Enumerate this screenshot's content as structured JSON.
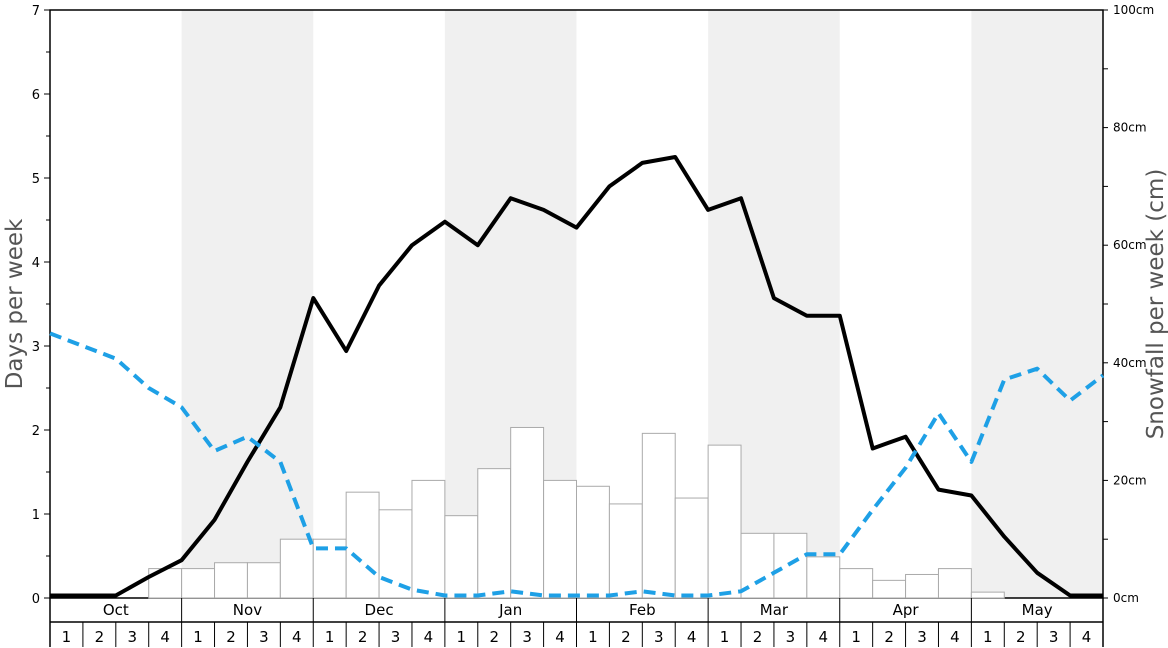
{
  "chart_data": {
    "type": "bar",
    "ylabel_left": "Days per week",
    "ylabel_right": "Snowfall per week (cm)",
    "ylim_left": [
      0,
      7
    ],
    "ylim_right": [
      0,
      100
    ],
    "left_ticks": [
      "0",
      "1",
      "2",
      "3",
      "4",
      "5",
      "6",
      "7"
    ],
    "right_ticks": [
      "0cm",
      "20cm",
      "40cm",
      "60cm",
      "80cm",
      "100cm"
    ],
    "months": [
      "Oct",
      "Nov",
      "Dec",
      "Jan",
      "Feb",
      "Mar",
      "Apr",
      "May"
    ],
    "week_labels": [
      "1",
      "2",
      "3",
      "4"
    ],
    "colors": {
      "bars_fill": "#ffffff",
      "bars_stroke": "#aaaaaa",
      "solid_line": "#000000",
      "dashed_line": "#1ea0e6",
      "shade": "#f0f0f0"
    },
    "series": [
      {
        "type": "bar",
        "axis": "right",
        "values": [
          0,
          0,
          0,
          5,
          5,
          6,
          6,
          10,
          10,
          18,
          15,
          20,
          14,
          22,
          29,
          20,
          19,
          16,
          28,
          17,
          26,
          11,
          11,
          7,
          5,
          3,
          4,
          5,
          1,
          0,
          0,
          0
        ]
      },
      {
        "type": "line",
        "style": "solid",
        "axis": "left",
        "values": [
          0.03,
          0.03,
          0.03,
          0.25,
          0.45,
          0.93,
          1.62,
          2.27,
          3.57,
          2.94,
          3.72,
          4.2,
          4.48,
          4.2,
          4.76,
          4.62,
          4.41,
          4.9,
          5.18,
          5.25,
          4.62,
          4.76,
          3.57,
          3.36,
          3.36,
          1.78,
          1.92,
          1.29,
          1.22,
          0.73,
          0.3,
          0.03,
          0.03
        ]
      },
      {
        "type": "line",
        "style": "dashed",
        "axis": "left",
        "values": [
          3.15,
          3.0,
          2.85,
          2.5,
          2.27,
          1.75,
          1.92,
          1.62,
          0.59,
          0.59,
          0.25,
          0.1,
          0.03,
          0.03,
          0.08,
          0.03,
          0.03,
          0.03,
          0.08,
          0.03,
          0.03,
          0.08,
          0.3,
          0.52,
          0.52,
          1.05,
          1.55,
          2.2,
          1.62,
          2.6,
          2.73,
          2.35,
          2.65
        ]
      }
    ]
  }
}
